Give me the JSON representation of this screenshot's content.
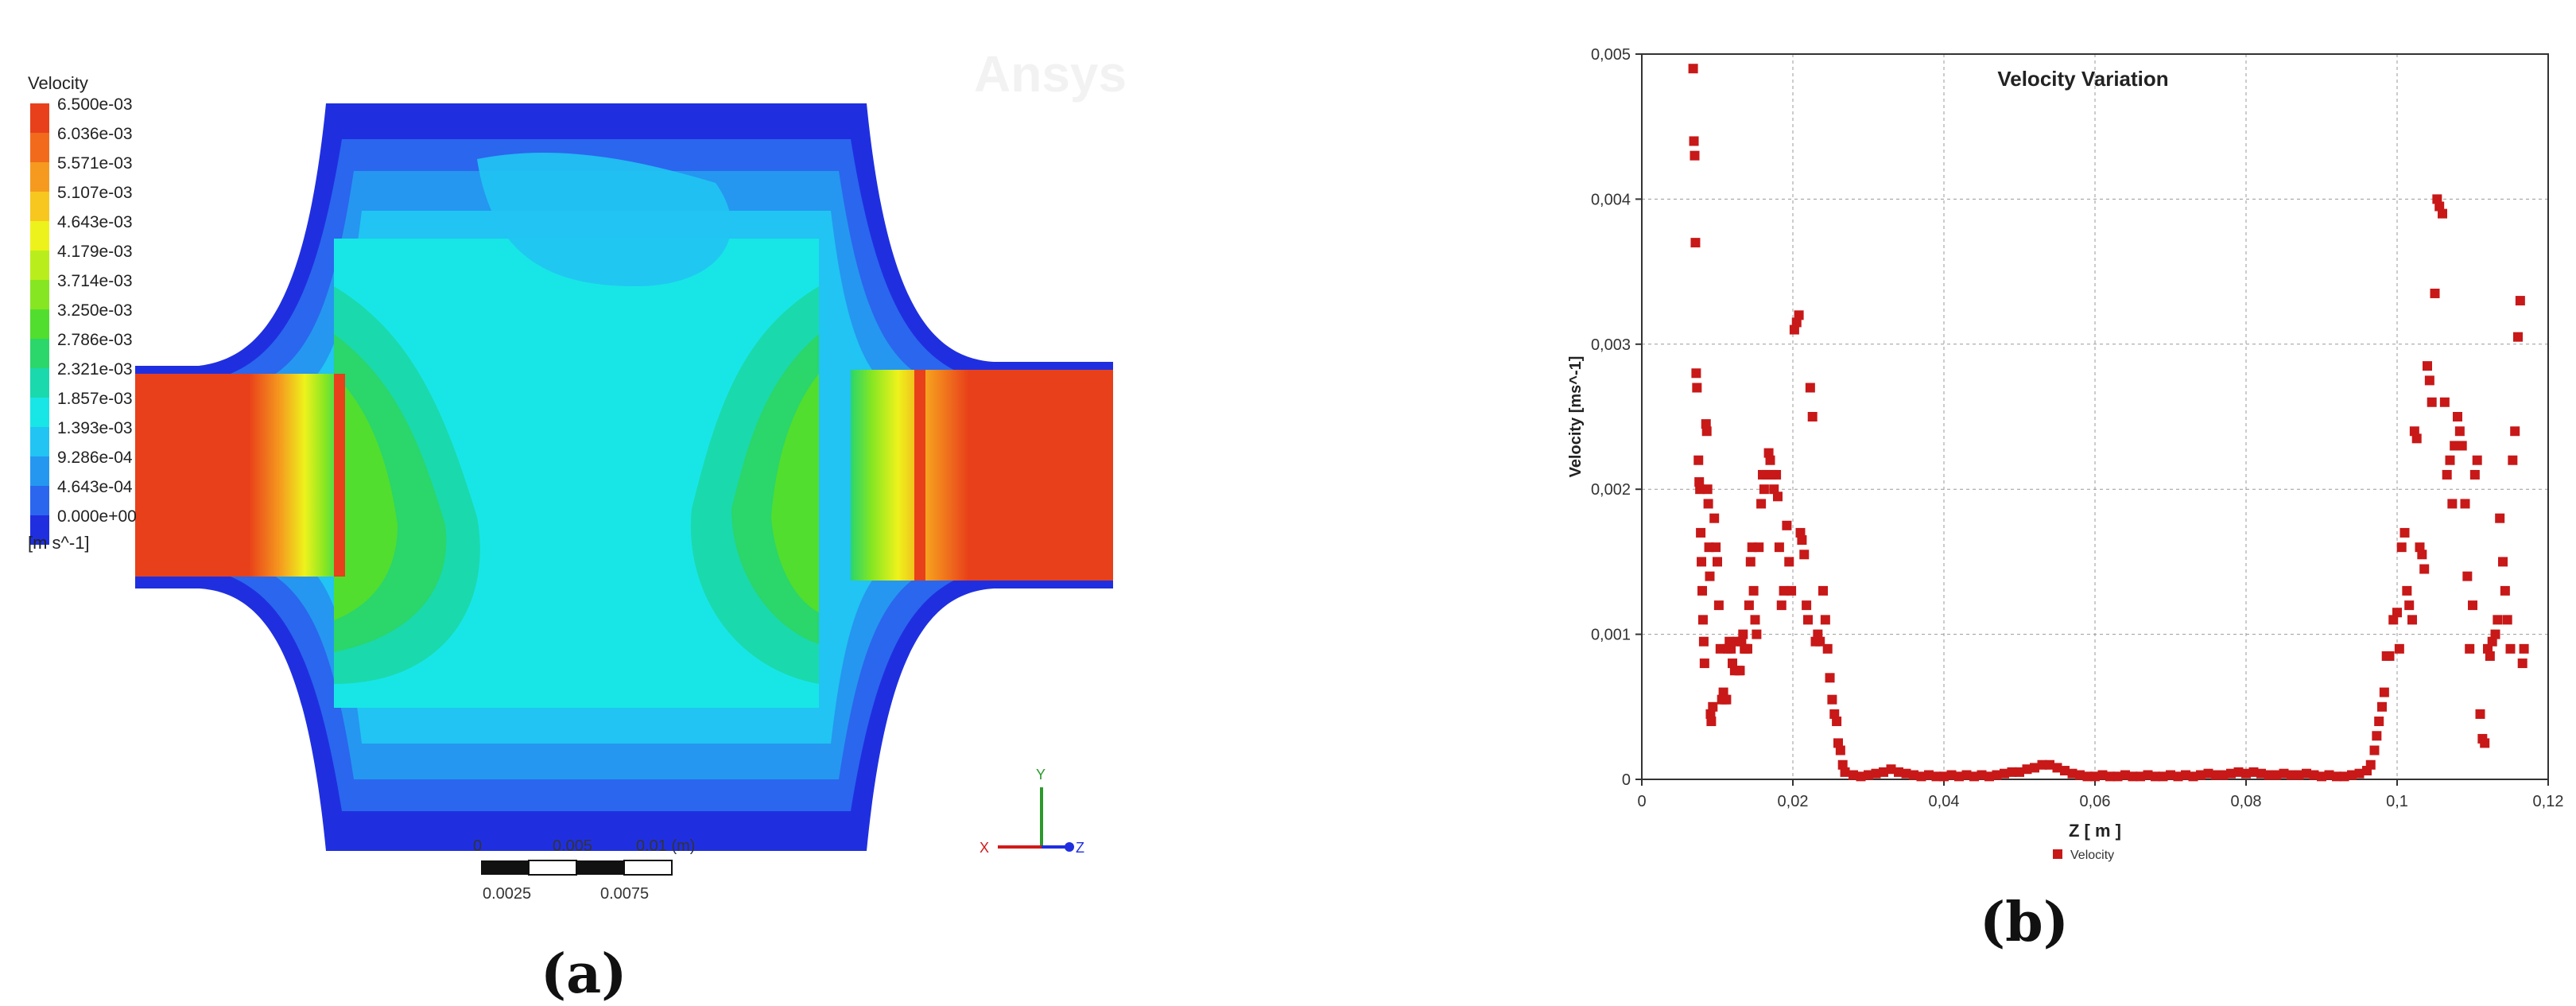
{
  "panel_a": {
    "legend_title": "Velocity",
    "legend_values": [
      "6.500e-03",
      "6.036e-03",
      "5.571e-03",
      "5.107e-03",
      "4.643e-03",
      "4.179e-03",
      "3.714e-03",
      "3.250e-03",
      "2.786e-03",
      "2.321e-03",
      "1.857e-03",
      "1.393e-03",
      "9.286e-04",
      "4.643e-04",
      "0.000e+00"
    ],
    "legend_colors": [
      "#e8401a",
      "#f26a1b",
      "#f59a1e",
      "#f7c61f",
      "#eef21c",
      "#b9ee1c",
      "#86e622",
      "#52de2e",
      "#2bd66a",
      "#1ad9ad",
      "#18e6e6",
      "#21c4f2",
      "#2597f0",
      "#2b66ee",
      "#1f2fe0"
    ],
    "unit": "[m s^-1]",
    "watermark": "Ansys",
    "scale_top": [
      "0",
      "0.005",
      "0.01 (m)"
    ],
    "scale_bottom": [
      "0.0025",
      "0.0075"
    ],
    "axis_y": "Y",
    "axis_x": "X",
    "axis_z": "Z",
    "label": "(a)"
  },
  "panel_b": {
    "label": "(b)"
  },
  "chart_data": {
    "type": "scatter",
    "title": "Velocity Variation",
    "xlabel": "Z [ m ]",
    "ylabel": "Velocity [ms^-1]",
    "xlim": [
      0,
      0.12
    ],
    "ylim": [
      0,
      0.005
    ],
    "x_ticks": [
      "0",
      "0,02",
      "0,04",
      "0,06",
      "0,08",
      "0,1",
      "0,12"
    ],
    "y_ticks": [
      "0",
      "0,001",
      "0,002",
      "0,003",
      "0,004",
      "0,005"
    ],
    "grid": true,
    "legend_position": "bottom",
    "series": [
      {
        "name": "Velocity",
        "color": "#c81818",
        "points": [
          [
            0.0068,
            0.0049
          ],
          [
            0.0069,
            0.0044
          ],
          [
            0.007,
            0.0043
          ],
          [
            0.0071,
            0.0037
          ],
          [
            0.0072,
            0.0028
          ],
          [
            0.0073,
            0.0027
          ],
          [
            0.0075,
            0.0022
          ],
          [
            0.0076,
            0.00205
          ],
          [
            0.0077,
            0.002
          ],
          [
            0.0078,
            0.0017
          ],
          [
            0.0079,
            0.0015
          ],
          [
            0.008,
            0.0013
          ],
          [
            0.0081,
            0.0011
          ],
          [
            0.0082,
            0.00095
          ],
          [
            0.0083,
            0.0008
          ],
          [
            0.0085,
            0.00245
          ],
          [
            0.0086,
            0.0024
          ],
          [
            0.0087,
            0.002
          ],
          [
            0.0088,
            0.0019
          ],
          [
            0.0089,
            0.0016
          ],
          [
            0.009,
            0.0014
          ],
          [
            0.0091,
            0.00045
          ],
          [
            0.0092,
            0.0004
          ],
          [
            0.0094,
            0.0005
          ],
          [
            0.0096,
            0.0018
          ],
          [
            0.0098,
            0.0016
          ],
          [
            0.01,
            0.0015
          ],
          [
            0.0102,
            0.0012
          ],
          [
            0.0104,
            0.0009
          ],
          [
            0.0106,
            0.00055
          ],
          [
            0.0108,
            0.0006
          ],
          [
            0.011,
            0.00055
          ],
          [
            0.0112,
            0.00055
          ],
          [
            0.0114,
            0.0009
          ],
          [
            0.0116,
            0.00095
          ],
          [
            0.0118,
            0.0009
          ],
          [
            0.012,
            0.0008
          ],
          [
            0.0123,
            0.00075
          ],
          [
            0.0126,
            0.00095
          ],
          [
            0.0128,
            0.00075
          ],
          [
            0.013,
            0.00075
          ],
          [
            0.0132,
            0.00095
          ],
          [
            0.0134,
            0.001
          ],
          [
            0.0136,
            0.0009
          ],
          [
            0.0138,
            0.0009
          ],
          [
            0.014,
            0.0009
          ],
          [
            0.0142,
            0.0012
          ],
          [
            0.0144,
            0.0015
          ],
          [
            0.0146,
            0.0016
          ],
          [
            0.0148,
            0.0013
          ],
          [
            0.015,
            0.0011
          ],
          [
            0.0152,
            0.001
          ],
          [
            0.0155,
            0.0016
          ],
          [
            0.0158,
            0.0019
          ],
          [
            0.016,
            0.0021
          ],
          [
            0.0162,
            0.002
          ],
          [
            0.0165,
            0.0021
          ],
          [
            0.0168,
            0.00225
          ],
          [
            0.017,
            0.0022
          ],
          [
            0.0172,
            0.0021
          ],
          [
            0.0175,
            0.002
          ],
          [
            0.0178,
            0.0021
          ],
          [
            0.018,
            0.00195
          ],
          [
            0.0182,
            0.0016
          ],
          [
            0.0185,
            0.0012
          ],
          [
            0.0188,
            0.0013
          ],
          [
            0.0192,
            0.00175
          ],
          [
            0.0195,
            0.0015
          ],
          [
            0.0198,
            0.0013
          ],
          [
            0.0202,
            0.0031
          ],
          [
            0.0205,
            0.00315
          ],
          [
            0.0208,
            0.0032
          ],
          [
            0.021,
            0.0017
          ],
          [
            0.0212,
            0.00165
          ],
          [
            0.0215,
            0.00155
          ],
          [
            0.0218,
            0.0012
          ],
          [
            0.022,
            0.0011
          ],
          [
            0.0223,
            0.0027
          ],
          [
            0.0226,
            0.0025
          ],
          [
            0.023,
            0.00095
          ],
          [
            0.0233,
            0.001
          ],
          [
            0.0236,
            0.00095
          ],
          [
            0.024,
            0.0013
          ],
          [
            0.0243,
            0.0011
          ],
          [
            0.0246,
            0.0009
          ],
          [
            0.0249,
            0.0007
          ],
          [
            0.0252,
            0.00055
          ],
          [
            0.0255,
            0.00045
          ],
          [
            0.0258,
            0.0004
          ],
          [
            0.026,
            0.00025
          ],
          [
            0.0263,
            0.0002
          ],
          [
            0.0266,
            0.0001
          ],
          [
            0.0269,
            5e-05
          ],
          [
            0.028,
            3e-05
          ],
          [
            0.029,
            2e-05
          ],
          [
            0.03,
            3e-05
          ],
          [
            0.031,
            4e-05
          ],
          [
            0.032,
            5e-05
          ],
          [
            0.033,
            7e-05
          ],
          [
            0.034,
            5e-05
          ],
          [
            0.035,
            4e-05
          ],
          [
            0.036,
            3e-05
          ],
          [
            0.037,
            2e-05
          ],
          [
            0.038,
            3e-05
          ],
          [
            0.039,
            2e-05
          ],
          [
            0.04,
            2e-05
          ],
          [
            0.041,
            3e-05
          ],
          [
            0.042,
            2e-05
          ],
          [
            0.043,
            3e-05
          ],
          [
            0.044,
            2e-05
          ],
          [
            0.045,
            3e-05
          ],
          [
            0.046,
            2e-05
          ],
          [
            0.047,
            3e-05
          ],
          [
            0.048,
            4e-05
          ],
          [
            0.049,
            5e-05
          ],
          [
            0.05,
            5e-05
          ],
          [
            0.051,
            7e-05
          ],
          [
            0.052,
            8e-05
          ],
          [
            0.053,
            0.0001
          ],
          [
            0.054,
            0.0001
          ],
          [
            0.055,
            8e-05
          ],
          [
            0.056,
            6e-05
          ],
          [
            0.057,
            4e-05
          ],
          [
            0.058,
            3e-05
          ],
          [
            0.059,
            2e-05
          ],
          [
            0.06,
            2e-05
          ],
          [
            0.061,
            3e-05
          ],
          [
            0.062,
            2e-05
          ],
          [
            0.063,
            2e-05
          ],
          [
            0.064,
            3e-05
          ],
          [
            0.065,
            2e-05
          ],
          [
            0.066,
            2e-05
          ],
          [
            0.067,
            3e-05
          ],
          [
            0.068,
            2e-05
          ],
          [
            0.069,
            2e-05
          ],
          [
            0.07,
            3e-05
          ],
          [
            0.071,
            2e-05
          ],
          [
            0.072,
            3e-05
          ],
          [
            0.073,
            2e-05
          ],
          [
            0.074,
            3e-05
          ],
          [
            0.075,
            4e-05
          ],
          [
            0.076,
            3e-05
          ],
          [
            0.077,
            3e-05
          ],
          [
            0.078,
            4e-05
          ],
          [
            0.079,
            5e-05
          ],
          [
            0.08,
            4e-05
          ],
          [
            0.081,
            5e-05
          ],
          [
            0.082,
            4e-05
          ],
          [
            0.083,
            3e-05
          ],
          [
            0.084,
            3e-05
          ],
          [
            0.085,
            4e-05
          ],
          [
            0.086,
            3e-05
          ],
          [
            0.087,
            3e-05
          ],
          [
            0.088,
            4e-05
          ],
          [
            0.089,
            3e-05
          ],
          [
            0.09,
            2e-05
          ],
          [
            0.091,
            3e-05
          ],
          [
            0.092,
            2e-05
          ],
          [
            0.093,
            2e-05
          ],
          [
            0.094,
            3e-05
          ],
          [
            0.095,
            4e-05
          ],
          [
            0.096,
            6e-05
          ],
          [
            0.0965,
            0.0001
          ],
          [
            0.097,
            0.0002
          ],
          [
            0.0973,
            0.0003
          ],
          [
            0.0976,
            0.0004
          ],
          [
            0.098,
            0.0005
          ],
          [
            0.0983,
            0.0006
          ],
          [
            0.0986,
            0.00085
          ],
          [
            0.099,
            0.00085
          ],
          [
            0.0995,
            0.0011
          ],
          [
            0.1,
            0.00115
          ],
          [
            0.1003,
            0.0009
          ],
          [
            0.1006,
            0.0016
          ],
          [
            0.101,
            0.0017
          ],
          [
            0.1013,
            0.0013
          ],
          [
            0.1016,
            0.0012
          ],
          [
            0.102,
            0.0011
          ],
          [
            0.1023,
            0.0024
          ],
          [
            0.1026,
            0.00235
          ],
          [
            0.103,
            0.0016
          ],
          [
            0.1033,
            0.00155
          ],
          [
            0.1036,
            0.00145
          ],
          [
            0.104,
            0.00285
          ],
          [
            0.1043,
            0.00275
          ],
          [
            0.1046,
            0.0026
          ],
          [
            0.105,
            0.00335
          ],
          [
            0.1053,
            0.004
          ],
          [
            0.1056,
            0.00395
          ],
          [
            0.106,
            0.0039
          ],
          [
            0.1063,
            0.0026
          ],
          [
            0.1066,
            0.0021
          ],
          [
            0.107,
            0.0022
          ],
          [
            0.1073,
            0.0019
          ],
          [
            0.1076,
            0.0023
          ],
          [
            0.108,
            0.0025
          ],
          [
            0.1083,
            0.0024
          ],
          [
            0.1086,
            0.0023
          ],
          [
            0.109,
            0.0019
          ],
          [
            0.1093,
            0.0014
          ],
          [
            0.1096,
            0.0009
          ],
          [
            0.11,
            0.0012
          ],
          [
            0.1103,
            0.0021
          ],
          [
            0.1106,
            0.0022
          ],
          [
            0.111,
            0.00045
          ],
          [
            0.1113,
            0.00028
          ],
          [
            0.1116,
            0.00025
          ],
          [
            0.112,
            0.0009
          ],
          [
            0.1123,
            0.00085
          ],
          [
            0.1126,
            0.00095
          ],
          [
            0.113,
            0.001
          ],
          [
            0.1133,
            0.0011
          ],
          [
            0.1136,
            0.0018
          ],
          [
            0.114,
            0.0015
          ],
          [
            0.1143,
            0.0013
          ],
          [
            0.1146,
            0.0011
          ],
          [
            0.115,
            0.0009
          ],
          [
            0.1153,
            0.0022
          ],
          [
            0.1156,
            0.0024
          ],
          [
            0.116,
            0.00305
          ],
          [
            0.1163,
            0.0033
          ],
          [
            0.1166,
            0.0008
          ],
          [
            0.1168,
            0.0009
          ]
        ]
      }
    ]
  }
}
